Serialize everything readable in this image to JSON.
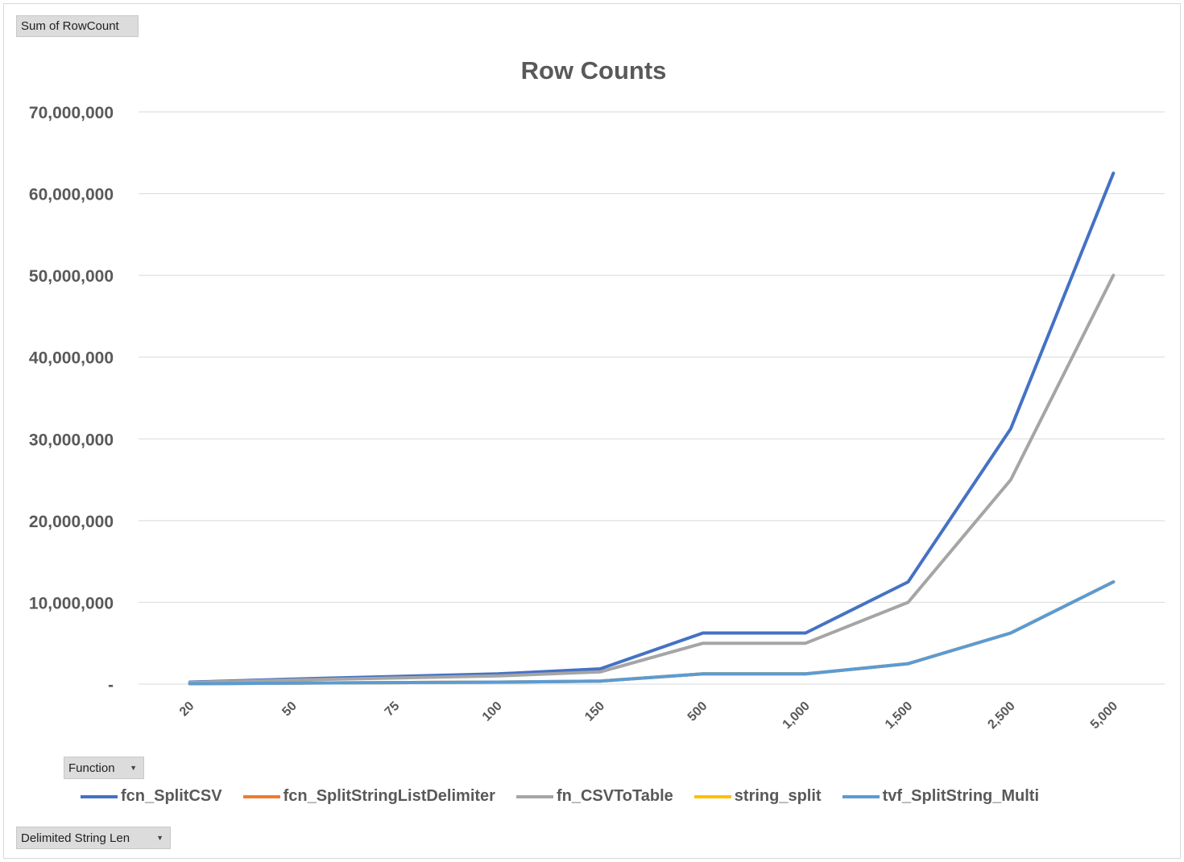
{
  "field_buttons": {
    "values": "Sum of RowCount",
    "series": "Function",
    "axis": "Delimited String Len"
  },
  "chart_data": {
    "type": "line",
    "title": "Row Counts",
    "xlabel": "",
    "ylabel": "",
    "ylim": [
      0,
      70000000
    ],
    "y_ticks": [
      "-",
      "10,000,000",
      "20,000,000",
      "30,000,000",
      "40,000,000",
      "50,000,000",
      "60,000,000",
      "70,000,000"
    ],
    "categories": [
      "20",
      "50",
      "75",
      "100",
      "150",
      "500",
      "1,000",
      "1,500",
      "2,500",
      "5,000"
    ],
    "grid": true,
    "legend_position": "bottom",
    "series": [
      {
        "name": "fcn_SplitCSV",
        "color": "#4472C4",
        "values": [
          250000,
          625000,
          937500,
          1250000,
          1875000,
          6250000,
          6250000,
          12500000,
          31250000,
          62500000
        ]
      },
      {
        "name": "fcn_SplitStringListDelimiter",
        "color": "#ED7D31",
        "values": [
          50000,
          125000,
          187500,
          250000,
          375000,
          1250000,
          1250000,
          2500000,
          6250000,
          12500000
        ]
      },
      {
        "name": "fn_CSVToTable",
        "color": "#A5A5A5",
        "values": [
          200000,
          500000,
          750000,
          1000000,
          1500000,
          5000000,
          5000000,
          10000000,
          25000000,
          50000000
        ]
      },
      {
        "name": "string_split",
        "color": "#FFC000",
        "values": [
          50000,
          125000,
          187500,
          250000,
          375000,
          1250000,
          1250000,
          2500000,
          6250000,
          12500000
        ]
      },
      {
        "name": "tvf_SplitString_Multi",
        "color": "#5B9BD5",
        "values": [
          50000,
          125000,
          187500,
          250000,
          375000,
          1250000,
          1250000,
          2500000,
          6250000,
          12500000
        ]
      }
    ]
  }
}
